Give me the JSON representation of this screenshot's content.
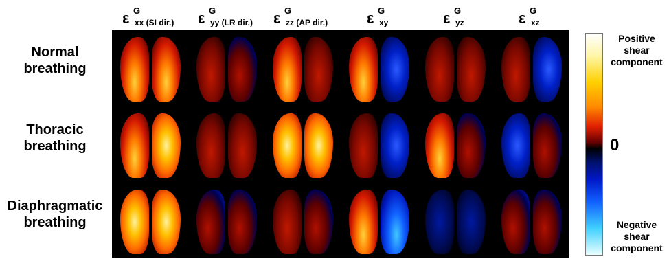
{
  "columns": [
    {
      "symbol": "ε",
      "sup": "G",
      "sub": "xx (SI dir.)"
    },
    {
      "symbol": "ε",
      "sup": "G",
      "sub": "yy (LR dir.)"
    },
    {
      "symbol": "ε",
      "sup": "G",
      "sub": "zz (AP dir.)"
    },
    {
      "symbol": "ε",
      "sup": "G",
      "sub": "xy"
    },
    {
      "symbol": "ε",
      "sup": "G",
      "sub": "yz"
    },
    {
      "symbol": "ε",
      "sup": "G",
      "sub": "xz"
    }
  ],
  "rows": [
    {
      "line1": "Normal",
      "line2": "breathing"
    },
    {
      "line1": "Thoracic",
      "line2": "breathing"
    },
    {
      "line1": "Diaphragmatic",
      "line2": "breathing"
    }
  ],
  "colorbar": {
    "top_label_1": "Positive",
    "top_label_2": "shear",
    "top_label_3": "component",
    "zero_label": "0",
    "bottom_label_1": "Negative",
    "bottom_label_2": "shear",
    "bottom_label_3": "component"
  }
}
